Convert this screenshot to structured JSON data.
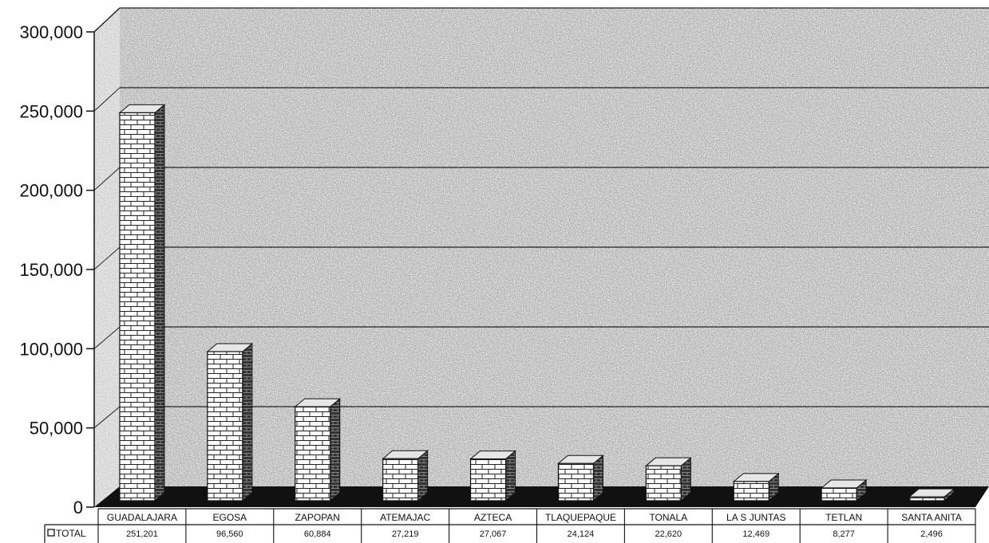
{
  "chart_data": {
    "type": "bar",
    "title": "",
    "xlabel": "",
    "ylabel": "",
    "categories": [
      "GUADALAJARA",
      "EGOSA",
      "ZAPOPAN",
      "ATEMAJAC",
      "AZTECA",
      "TLAQUEPAQUE",
      "TONALA",
      "LA S JUNTAS",
      "TETLAN",
      "SANTA ANITA"
    ],
    "value_labels": [
      "251,201",
      "96,560",
      "60,884",
      "27,219",
      "27,067",
      "24,124",
      "22,620",
      "12,469",
      "8,277",
      "2,496"
    ],
    "series": [
      {
        "name": "TOTAL",
        "values": [
          251201,
          96560,
          60884,
          27219,
          27067,
          24124,
          22620,
          12469,
          8277,
          2496
        ]
      }
    ],
    "ylim": [
      0,
      300000
    ],
    "yticks": [
      0,
      50000,
      100000,
      150000,
      200000,
      250000,
      300000
    ],
    "ytick_labels": [
      "0",
      "50,000",
      "100,000",
      "150,000",
      "200,000",
      "250,000",
      "300,000"
    ],
    "grid": true,
    "legend": "data-table-left",
    "style": "3d-column-brick",
    "colors": {
      "bar_face": "#ffffff",
      "bar_side": "#222222",
      "wall": "#9a9a9a",
      "floor": "#111111",
      "grid": "#222222"
    }
  }
}
